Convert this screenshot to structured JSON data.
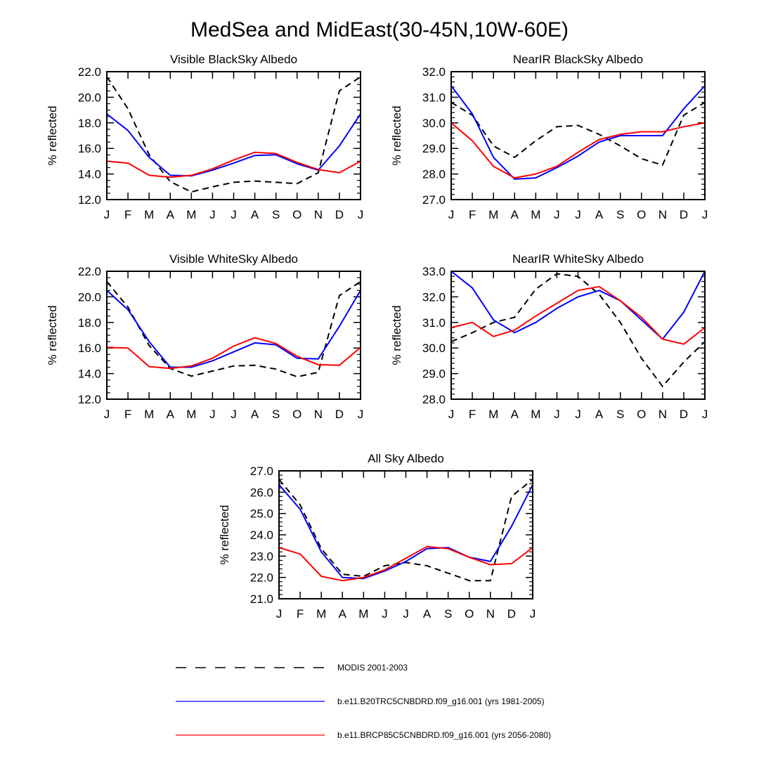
{
  "figure": {
    "title": "MedSea and MidEast(30-45N,10W-60E)"
  },
  "legend": [
    {
      "key": "modis",
      "label": "MODIS 2001-2003",
      "color": "#000000",
      "dash": true
    },
    {
      "key": "b20tr",
      "label": "b.e11.B20TRC5CNBDRD.f09_g16.001 (yrs 1981-2005)",
      "color": "#0000ff",
      "dash": false
    },
    {
      "key": "brcp85",
      "label": "b.e11.BRCP85C5CNBDRD.f09_g16.001 (yrs 2056-2080)",
      "color": "#ff0000",
      "dash": false
    }
  ],
  "chart_data": [
    {
      "type": "line",
      "title": "Visible BlackSky Albedo",
      "xlabel": "",
      "ylabel": "% reflected",
      "categories": [
        "J",
        "F",
        "M",
        "A",
        "M",
        "J",
        "J",
        "A",
        "S",
        "O",
        "N",
        "D",
        "J"
      ],
      "ylim": [
        12,
        22
      ],
      "yticks": [
        "12.0",
        "14.0",
        "16.0",
        "18.0",
        "20.0",
        "22.0"
      ],
      "series": [
        {
          "name": "MODIS 2001-2003",
          "values": [
            21.6,
            19.1,
            15.5,
            13.4,
            12.6,
            13.0,
            13.35,
            13.45,
            13.35,
            13.25,
            14.1,
            20.5,
            21.6
          ]
        },
        {
          "name": "b.e11.B20TRC5CNBDRD.f09_g16.001 (yrs 1981-2005)",
          "values": [
            18.7,
            17.4,
            15.3,
            13.9,
            13.85,
            14.3,
            14.85,
            15.45,
            15.5,
            14.8,
            14.3,
            16.2,
            18.7
          ]
        },
        {
          "name": "b.e11.BRCP85C5CNBDRD.f09_g16.001 (yrs 2056-2080)",
          "values": [
            15.0,
            14.85,
            13.9,
            13.75,
            13.9,
            14.4,
            15.1,
            15.7,
            15.6,
            14.9,
            14.35,
            14.1,
            15.0
          ]
        }
      ]
    },
    {
      "type": "line",
      "title": "NearIR BlackSky Albedo",
      "xlabel": "",
      "ylabel": "% reflected",
      "categories": [
        "J",
        "F",
        "M",
        "A",
        "M",
        "J",
        "J",
        "A",
        "S",
        "O",
        "N",
        "D",
        "J"
      ],
      "ylim": [
        27,
        32
      ],
      "yticks": [
        "27.0",
        "28.0",
        "29.0",
        "30.0",
        "31.0",
        "32.0"
      ],
      "series": [
        {
          "name": "MODIS 2001-2003",
          "values": [
            30.8,
            30.3,
            29.1,
            28.65,
            29.3,
            29.85,
            29.9,
            29.55,
            29.1,
            28.6,
            28.35,
            30.3,
            30.8
          ]
        },
        {
          "name": "b.e11.B20TRC5CNBDRD.f09_g16.001 (yrs 1981-2005)",
          "values": [
            31.45,
            30.35,
            28.65,
            27.8,
            27.85,
            28.25,
            28.7,
            29.25,
            29.5,
            29.5,
            29.5,
            30.55,
            31.45
          ]
        },
        {
          "name": "b.e11.BRCP85C5CNBDRD.f09_g16.001 (yrs 2056-2080)",
          "values": [
            30.0,
            29.3,
            28.3,
            27.85,
            28.0,
            28.3,
            28.85,
            29.35,
            29.55,
            29.65,
            29.65,
            29.85,
            30.0
          ]
        }
      ]
    },
    {
      "type": "line",
      "title": "Visible WhiteSky Albedo",
      "xlabel": "",
      "ylabel": "% reflected",
      "categories": [
        "J",
        "F",
        "M",
        "A",
        "M",
        "J",
        "J",
        "A",
        "S",
        "O",
        "N",
        "D",
        "J"
      ],
      "ylim": [
        12,
        22
      ],
      "yticks": [
        "12.0",
        "14.0",
        "16.0",
        "18.0",
        "20.0",
        "22.0"
      ],
      "series": [
        {
          "name": "MODIS 2001-2003",
          "values": [
            21.2,
            19.2,
            16.2,
            14.4,
            13.8,
            14.2,
            14.6,
            14.65,
            14.35,
            13.75,
            14.1,
            20.1,
            21.2
          ]
        },
        {
          "name": "b.e11.B20TRC5CNBDRD.f09_g16.001 (yrs 1981-2005)",
          "values": [
            20.5,
            19.0,
            16.5,
            14.5,
            14.5,
            15.0,
            15.7,
            16.4,
            16.25,
            15.2,
            15.15,
            17.7,
            20.5
          ]
        },
        {
          "name": "b.e11.BRCP85C5CNBDRD.f09_g16.001 (yrs 2056-2080)",
          "values": [
            16.05,
            16.0,
            14.55,
            14.4,
            14.6,
            15.2,
            16.15,
            16.8,
            16.35,
            15.35,
            14.7,
            14.65,
            16.05
          ]
        }
      ]
    },
    {
      "type": "line",
      "title": "NearIR WhiteSky Albedo",
      "xlabel": "",
      "ylabel": "% reflected",
      "categories": [
        "J",
        "F",
        "M",
        "A",
        "M",
        "J",
        "J",
        "A",
        "S",
        "O",
        "N",
        "D",
        "J"
      ],
      "ylim": [
        28,
        33
      ],
      "yticks": [
        "28.0",
        "29.0",
        "30.0",
        "31.0",
        "32.0",
        "33.0"
      ],
      "series": [
        {
          "name": "MODIS 2001-2003",
          "values": [
            30.25,
            30.6,
            31.0,
            31.2,
            32.3,
            32.9,
            32.8,
            32.1,
            31.0,
            29.6,
            28.5,
            29.45,
            30.25
          ]
        },
        {
          "name": "b.e11.B20TRC5CNBDRD.f09_g16.001 (yrs 1981-2005)",
          "values": [
            33.0,
            32.35,
            31.1,
            30.6,
            31.0,
            31.55,
            32.0,
            32.25,
            31.85,
            31.1,
            30.35,
            31.4,
            33.0
          ]
        },
        {
          "name": "b.e11.BRCP85C5CNBDRD.f09_g16.001 (yrs 2056-2080)",
          "values": [
            30.8,
            31.0,
            30.45,
            30.7,
            31.25,
            31.75,
            32.25,
            32.4,
            31.85,
            31.2,
            30.35,
            30.15,
            30.8
          ]
        }
      ]
    },
    {
      "type": "line",
      "title": "All Sky Albedo",
      "xlabel": "",
      "ylabel": "% reflected",
      "categories": [
        "J",
        "F",
        "M",
        "A",
        "M",
        "J",
        "J",
        "A",
        "S",
        "O",
        "N",
        "D",
        "J"
      ],
      "ylim": [
        21,
        27
      ],
      "yticks": [
        "21.0",
        "22.0",
        "23.0",
        "24.0",
        "25.0",
        "26.0",
        "27.0"
      ],
      "series": [
        {
          "name": "MODIS 2001-2003",
          "values": [
            26.6,
            25.4,
            23.35,
            22.15,
            22.05,
            22.55,
            22.7,
            22.55,
            22.2,
            21.85,
            21.85,
            25.8,
            26.6
          ]
        },
        {
          "name": "b.e11.B20TRC5CNBDRD.f09_g16.001 (yrs 1981-2005)",
          "values": [
            26.35,
            25.2,
            23.2,
            22.0,
            21.95,
            22.3,
            22.75,
            23.35,
            23.4,
            22.95,
            22.75,
            24.4,
            26.35
          ]
        },
        {
          "name": "b.e11.BRCP85C5CNBDRD.f09_g16.001 (yrs 2056-2080)",
          "values": [
            23.4,
            23.1,
            22.05,
            21.85,
            22.0,
            22.35,
            22.9,
            23.45,
            23.35,
            22.95,
            22.6,
            22.65,
            23.4
          ]
        }
      ]
    }
  ]
}
